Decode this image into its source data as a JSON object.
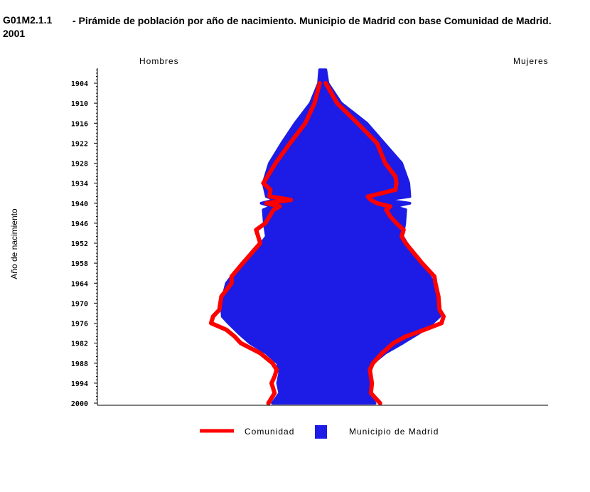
{
  "header": {
    "code": "G01M2.1.1",
    "title": "- Pirámide de población por año de nacimiento. Municipio de Madrid con base Comunidad de Madrid. 2001"
  },
  "chart_data": {
    "type": "population-pyramid",
    "left_label": "Hombres",
    "right_label": "Mujeres",
    "ylabel": "Año de nacimiento",
    "ylim": [
      1900,
      2000
    ],
    "yticks": [
      "1904",
      "1910",
      "1916",
      "1922",
      "1928",
      "1934",
      "1940",
      "1946",
      "1952",
      "1958",
      "1964",
      "1970",
      "1976",
      "1982",
      "1988",
      "1994",
      "2000"
    ],
    "xlim_percent": [
      -2.2,
      2.2
    ],
    "legend": [
      {
        "name": "Comunidad",
        "color": "#ff0000"
      },
      {
        "name": "Municipio de Madrid",
        "color": "#1c1ce6"
      }
    ],
    "series": [
      {
        "name": "Municipio de Madrid",
        "years": [
          1900,
          1904,
          1910,
          1916,
          1922,
          1928,
          1934,
          1938,
          1939,
          1940,
          1941,
          1942,
          1946,
          1950,
          1952,
          1958,
          1964,
          1970,
          1974,
          1976,
          1979,
          1982,
          1985,
          1988,
          1991,
          1994,
          1997,
          2000
        ],
        "men": [
          0.03,
          0.04,
          0.12,
          0.27,
          0.4,
          0.52,
          0.58,
          0.55,
          0.47,
          0.6,
          0.5,
          0.58,
          0.57,
          0.55,
          0.6,
          0.79,
          0.94,
          0.99,
          0.98,
          0.92,
          0.82,
          0.71,
          0.55,
          0.44,
          0.42,
          0.44,
          0.42,
          0.49
        ],
        "women": [
          0.03,
          0.05,
          0.18,
          0.43,
          0.6,
          0.77,
          0.84,
          0.85,
          0.61,
          0.85,
          0.7,
          0.81,
          0.8,
          0.78,
          0.82,
          0.95,
          1.09,
          1.14,
          1.14,
          1.07,
          0.94,
          0.78,
          0.61,
          0.49,
          0.46,
          0.48,
          0.45,
          0.51
        ]
      },
      {
        "name": "Comunidad",
        "years": [
          1904,
          1910,
          1916,
          1922,
          1928,
          1932,
          1934,
          1936,
          1938,
          1939,
          1940,
          1941,
          1942,
          1944,
          1946,
          1948,
          1950,
          1952,
          1958,
          1962,
          1964,
          1968,
          1972,
          1974,
          1976,
          1978,
          1980,
          1982,
          1985,
          1988,
          1990,
          1992,
          1994,
          1997,
          2000
        ],
        "men": [
          0.03,
          0.08,
          0.17,
          0.32,
          0.46,
          0.54,
          0.58,
          0.51,
          0.52,
          0.31,
          0.55,
          0.42,
          0.48,
          0.52,
          0.56,
          0.65,
          0.63,
          0.61,
          0.78,
          0.89,
          0.89,
          0.99,
          1.01,
          1.07,
          1.09,
          0.94,
          0.86,
          0.8,
          0.61,
          0.49,
          0.45,
          0.47,
          0.5,
          0.47,
          0.53
        ],
        "women": [
          0.03,
          0.14,
          0.34,
          0.53,
          0.61,
          0.71,
          0.72,
          0.71,
          0.44,
          0.47,
          0.53,
          0.66,
          0.62,
          0.66,
          0.72,
          0.79,
          0.77,
          0.81,
          0.97,
          1.09,
          1.1,
          1.13,
          1.14,
          1.18,
          1.16,
          0.99,
          0.81,
          0.69,
          0.58,
          0.49,
          0.46,
          0.47,
          0.48,
          0.47,
          0.56
        ]
      }
    ]
  }
}
